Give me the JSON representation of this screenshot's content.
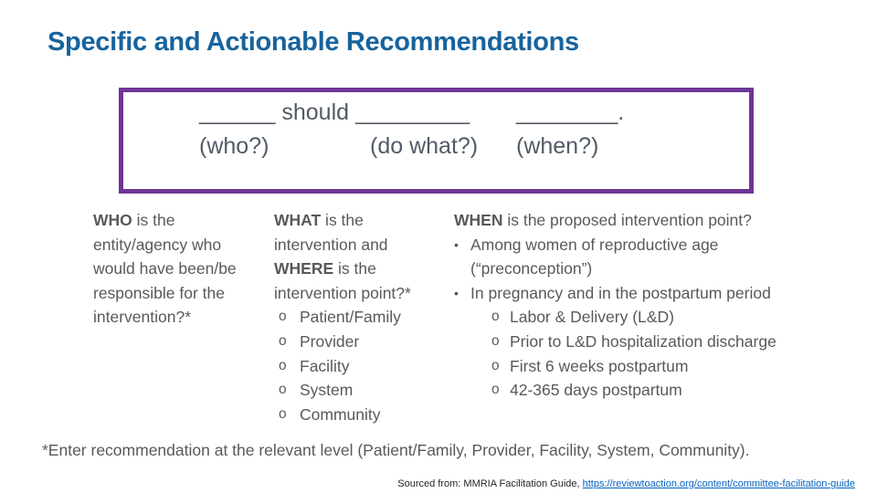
{
  "title": "Specific and Actionable Recommendations",
  "colors": {
    "title_blue": "#17639C",
    "box_border_purple": "#6F3596",
    "body_gray": "#595959",
    "box_text_gray": "#515B66",
    "link_blue": "#0563C1",
    "source_text": "#262626"
  },
  "markers": {
    "level1_dot": "•",
    "level2_circle": "o"
  },
  "fill_in_box": {
    "line1_seg1": "______ should _________",
    "line1_seg2": "________.",
    "labels": {
      "who": "(who?)",
      "do_what": "(do what?)",
      "when": "(when?)"
    }
  },
  "columns": {
    "who": {
      "heading_bold": "WHO",
      "line1_rest": " is the",
      "lines": [
        "entity/agency who",
        "would have been/be",
        "responsible for the",
        "intervention?*"
      ]
    },
    "what": {
      "heading_bold_1": "WHAT",
      "line1_rest": " is the",
      "line2": "intervention and",
      "heading_bold_2": "WHERE",
      "line3_rest": " is the",
      "line4": "intervention point?*",
      "items": [
        "Patient/Family",
        "Provider",
        "Facility",
        "System",
        "Community"
      ]
    },
    "when": {
      "heading_bold": "WHEN",
      "line1_rest": " is the proposed intervention point?",
      "bullet1_line1": "Among women of reproductive age",
      "bullet1_line2": "(“preconception”)",
      "bullet2": "In pregnancy and in the postpartum period",
      "sub_items": [
        "Labor & Delivery (L&D)",
        "Prior to L&D hospitalization discharge",
        "First 6 weeks postpartum",
        "42-365 days postpartum"
      ]
    }
  },
  "footnote": "*Enter recommendation at the relevant level (Patient/Family, Provider, Facility, System, Community).",
  "source": {
    "prefix": "Sourced from: MMRIA Facilitation Guide, ",
    "link_text": "https://reviewtoaction.org/content/committee-facilitation-guide"
  }
}
